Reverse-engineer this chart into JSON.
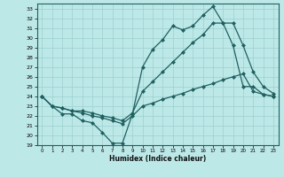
{
  "xlabel": "Humidex (Indice chaleur)",
  "xlim": [
    -0.5,
    23.5
  ],
  "ylim": [
    19,
    33.5
  ],
  "yticks": [
    19,
    20,
    21,
    22,
    23,
    24,
    25,
    26,
    27,
    28,
    29,
    30,
    31,
    32,
    33
  ],
  "xticks": [
    0,
    1,
    2,
    3,
    4,
    5,
    6,
    7,
    8,
    9,
    10,
    11,
    12,
    13,
    14,
    15,
    16,
    17,
    18,
    19,
    20,
    21,
    22,
    23
  ],
  "bg_color": "#bde8e8",
  "grid_color": "#9dcfcf",
  "line_color": "#206060",
  "marker": "D",
  "marker_size": 2.0,
  "line_width": 0.9,
  "lines": [
    {
      "x": [
        0,
        1,
        2,
        3,
        4,
        5,
        6,
        7,
        8,
        9,
        10,
        11,
        12,
        13,
        14,
        15,
        16,
        17,
        18,
        19,
        20,
        21,
        22,
        23
      ],
      "y": [
        24.0,
        23.0,
        22.2,
        22.2,
        21.5,
        21.3,
        20.3,
        19.2,
        19.2,
        22.2,
        27.0,
        28.8,
        29.8,
        31.2,
        30.8,
        31.2,
        32.3,
        33.2,
        31.5,
        29.2,
        25.0,
        25.0,
        24.2,
        24.0
      ]
    },
    {
      "x": [
        0,
        1,
        2,
        3,
        4,
        5,
        6,
        7,
        8,
        9,
        10,
        11,
        12,
        13,
        14,
        15,
        16,
        17,
        18,
        19,
        20,
        21,
        22,
        23
      ],
      "y": [
        24.0,
        23.0,
        22.8,
        22.5,
        22.5,
        22.3,
        22.0,
        21.8,
        21.5,
        22.3,
        24.5,
        25.5,
        26.5,
        27.5,
        28.5,
        29.5,
        30.3,
        31.5,
        31.5,
        31.5,
        29.2,
        26.5,
        25.0,
        24.3
      ]
    },
    {
      "x": [
        0,
        1,
        2,
        3,
        4,
        5,
        6,
        7,
        8,
        9,
        10,
        11,
        12,
        13,
        14,
        15,
        16,
        17,
        18,
        19,
        20,
        21,
        22,
        23
      ],
      "y": [
        24.0,
        23.0,
        22.8,
        22.5,
        22.3,
        22.0,
        21.8,
        21.5,
        21.2,
        22.0,
        23.0,
        23.3,
        23.7,
        24.0,
        24.3,
        24.7,
        25.0,
        25.3,
        25.7,
        26.0,
        26.3,
        24.5,
        24.2,
        24.0
      ]
    }
  ]
}
